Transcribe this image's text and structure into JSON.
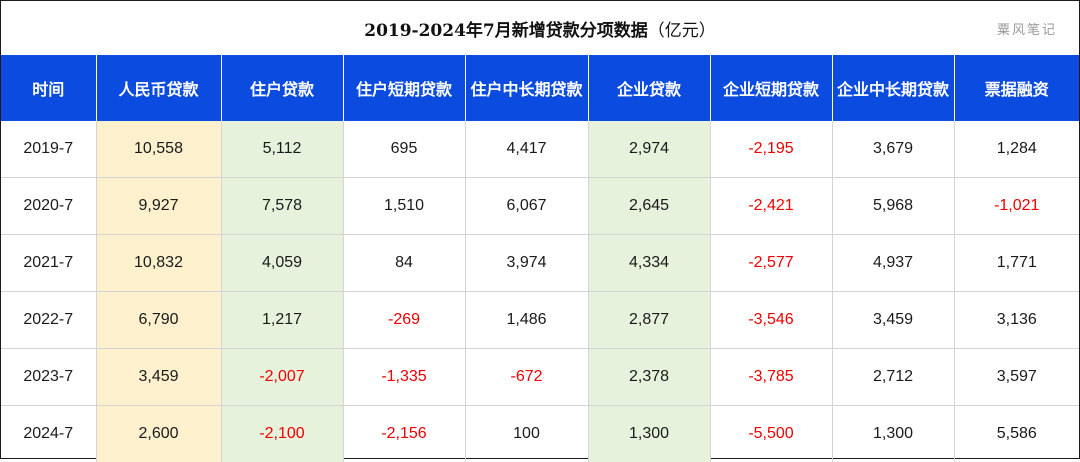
{
  "title": {
    "main": "2019-2024年7月新增贷款分项数据",
    "unit": "（亿元）"
  },
  "watermark": "粟风笔记",
  "chart_data": {
    "type": "table",
    "columns": [
      "时间",
      "人民币贷款",
      "住户贷款",
      "住户短期贷款",
      "住户中长期贷款",
      "企业贷款",
      "企业短期贷款",
      "企业中长期贷款",
      "票据融资"
    ],
    "rows": [
      [
        "2019-7",
        "10,558",
        "5,112",
        "695",
        "4,417",
        "2,974",
        "-2,195",
        "3,679",
        "1,284"
      ],
      [
        "2020-7",
        "9,927",
        "7,578",
        "1,510",
        "6,067",
        "2,645",
        "-2,421",
        "5,968",
        "-1,021"
      ],
      [
        "2021-7",
        "10,832",
        "4,059",
        "84",
        "3,974",
        "4,334",
        "-2,577",
        "4,937",
        "1,771"
      ],
      [
        "2022-7",
        "6,790",
        "1,217",
        "-269",
        "1,486",
        "2,877",
        "-3,546",
        "3,459",
        "3,136"
      ],
      [
        "2023-7",
        "3,459",
        "-2,007",
        "-1,335",
        "-672",
        "2,378",
        "-3,785",
        "2,712",
        "3,597"
      ],
      [
        "2024-7",
        "2,600",
        "-2,100",
        "-2,156",
        "100",
        "1,300",
        "-5,500",
        "1,300",
        "5,586"
      ]
    ]
  },
  "colors": {
    "header_bg": "#0c4be0",
    "header_text": "#ffffff",
    "highlight_yellow": "#fdf0cc",
    "highlight_green": "#e6f2dc",
    "negative_text": "#ee0000"
  }
}
